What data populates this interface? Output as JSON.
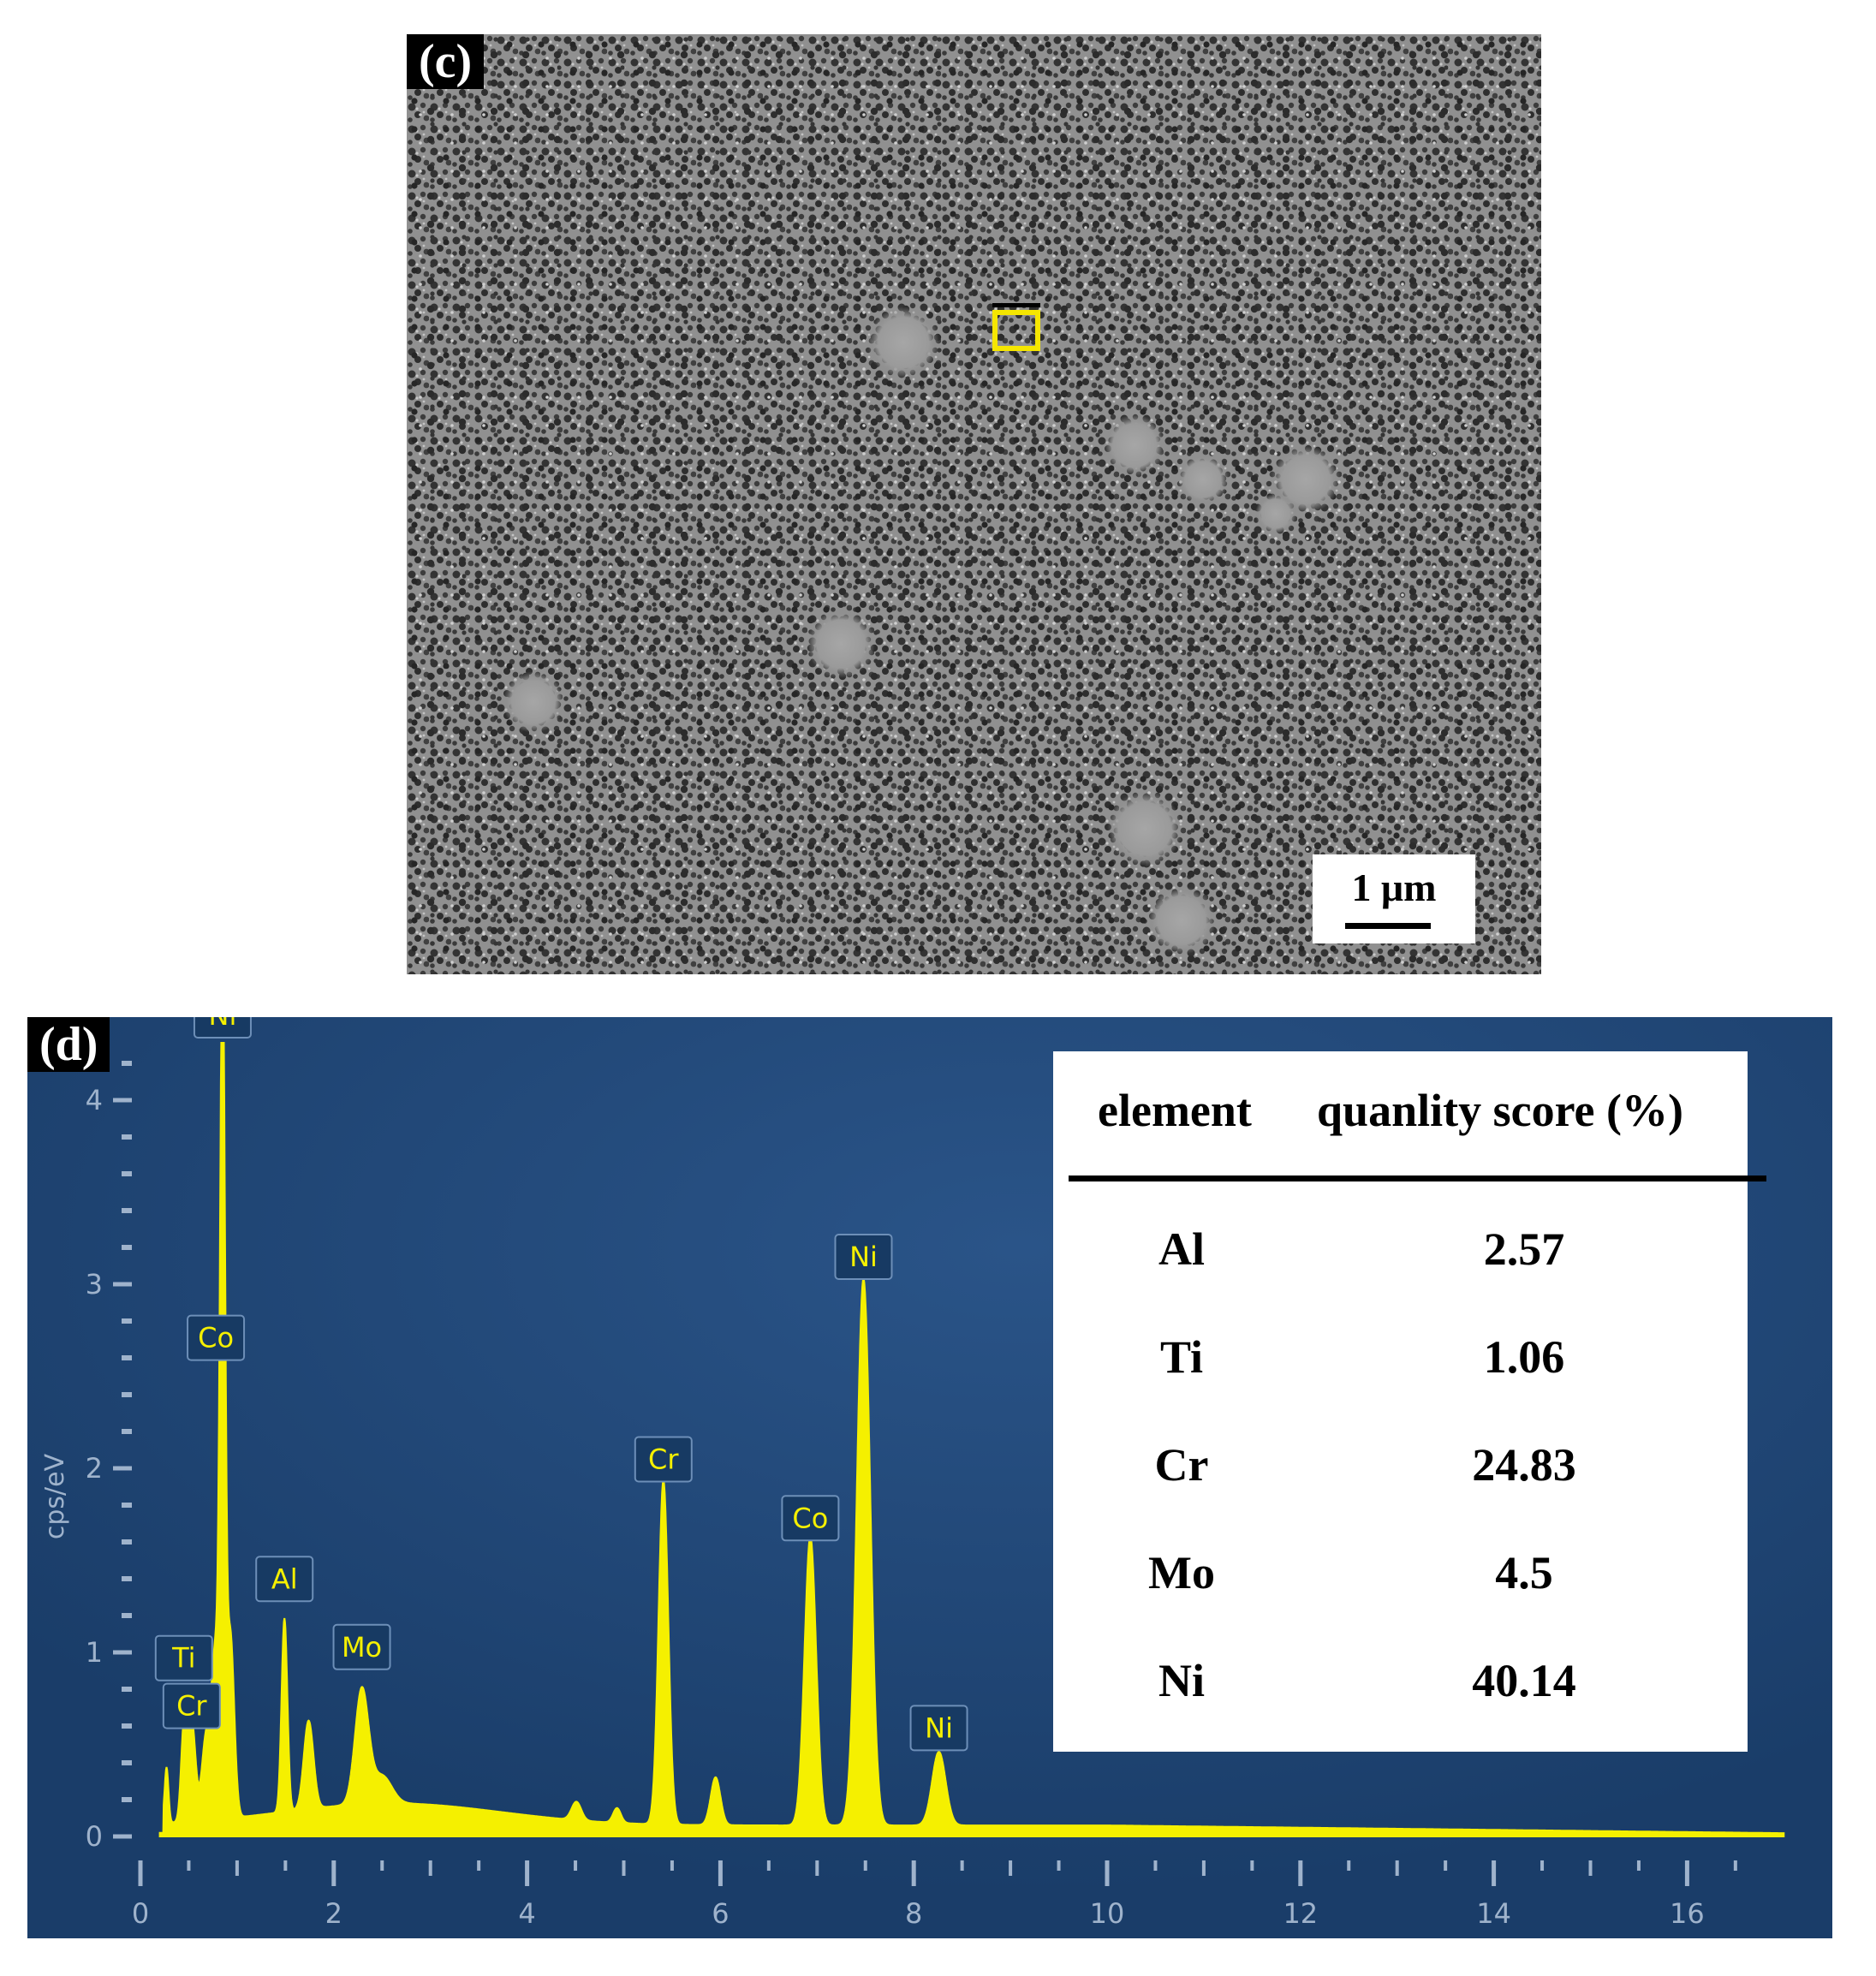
{
  "panel_c": {
    "label": "(c)",
    "scale_bar_label": "1 μm"
  },
  "panel_d": {
    "label": "(d)",
    "table": {
      "headers": [
        "element",
        "quanlity score  (%)"
      ],
      "rows": [
        {
          "element": "Al",
          "value": "2.57"
        },
        {
          "element": "Ti",
          "value": "1.06"
        },
        {
          "element": "Cr",
          "value": "24.83"
        },
        {
          "element": "Mo",
          "value": "4.5"
        },
        {
          "element": "Ni",
          "value": "40.14"
        }
      ]
    }
  },
  "colors": {
    "eds_background": "#1b4170",
    "spectrum": "#f5f000",
    "axis_text": "#9fb3cc",
    "peak_label_text": "#f5f000",
    "roi_box": "#f5e600"
  },
  "chart_data": {
    "type": "area",
    "title": "",
    "xlabel": "",
    "ylabel": "cps/eV",
    "xlim": [
      0,
      17
    ],
    "ylim": [
      0,
      4.4
    ],
    "x_ticks": [
      0,
      2,
      4,
      6,
      8,
      10,
      12,
      14,
      16
    ],
    "y_ticks": [
      0,
      1,
      2,
      3,
      4
    ],
    "grid": false,
    "legend": "none",
    "baseline": 0.06,
    "peaks": [
      {
        "x": 0.27,
        "y": 0.3,
        "width": 0.02
      },
      {
        "x": 0.45,
        "y": 0.5,
        "width": 0.03
      },
      {
        "x": 0.53,
        "y": 0.55,
        "width": 0.04
      },
      {
        "x": 0.67,
        "y": 0.38,
        "width": 0.04
      },
      {
        "x": 0.78,
        "y": 0.95,
        "width": 0.05
      },
      {
        "x": 0.85,
        "y": 4.4,
        "width": 0.025
      },
      {
        "x": 0.93,
        "y": 1.0,
        "width": 0.04
      },
      {
        "x": 1.49,
        "y": 1.05,
        "width": 0.03
      },
      {
        "x": 1.74,
        "y": 0.48,
        "width": 0.05
      },
      {
        "x": 2.29,
        "y": 0.62,
        "width": 0.07
      },
      {
        "x": 2.5,
        "y": 0.15,
        "width": 0.1
      },
      {
        "x": 4.51,
        "y": 0.1,
        "width": 0.05
      },
      {
        "x": 4.93,
        "y": 0.08,
        "width": 0.04
      },
      {
        "x": 5.41,
        "y": 1.87,
        "width": 0.05
      },
      {
        "x": 5.95,
        "y": 0.26,
        "width": 0.05
      },
      {
        "x": 6.93,
        "y": 1.57,
        "width": 0.06
      },
      {
        "x": 7.48,
        "y": 2.97,
        "width": 0.07
      },
      {
        "x": 8.26,
        "y": 0.4,
        "width": 0.07
      }
    ],
    "peak_labels": [
      {
        "text": "Ni",
        "x": 0.85,
        "y": 4.4
      },
      {
        "text": "Co",
        "x": 0.78,
        "y": 2.56
      },
      {
        "text": "Al",
        "x": 1.49,
        "y": 1.25
      },
      {
        "text": "Mo",
        "x": 2.29,
        "y": 0.88
      },
      {
        "text": "Ti",
        "x": 0.45,
        "y": 0.82
      },
      {
        "text": "Cr",
        "x": 0.53,
        "y": 0.56
      },
      {
        "text": "Cr",
        "x": 5.41,
        "y": 1.9
      },
      {
        "text": "Co",
        "x": 6.93,
        "y": 1.58
      },
      {
        "text": "Ni",
        "x": 7.48,
        "y": 3.0
      },
      {
        "text": "Ni",
        "x": 8.26,
        "y": 0.44
      }
    ]
  }
}
